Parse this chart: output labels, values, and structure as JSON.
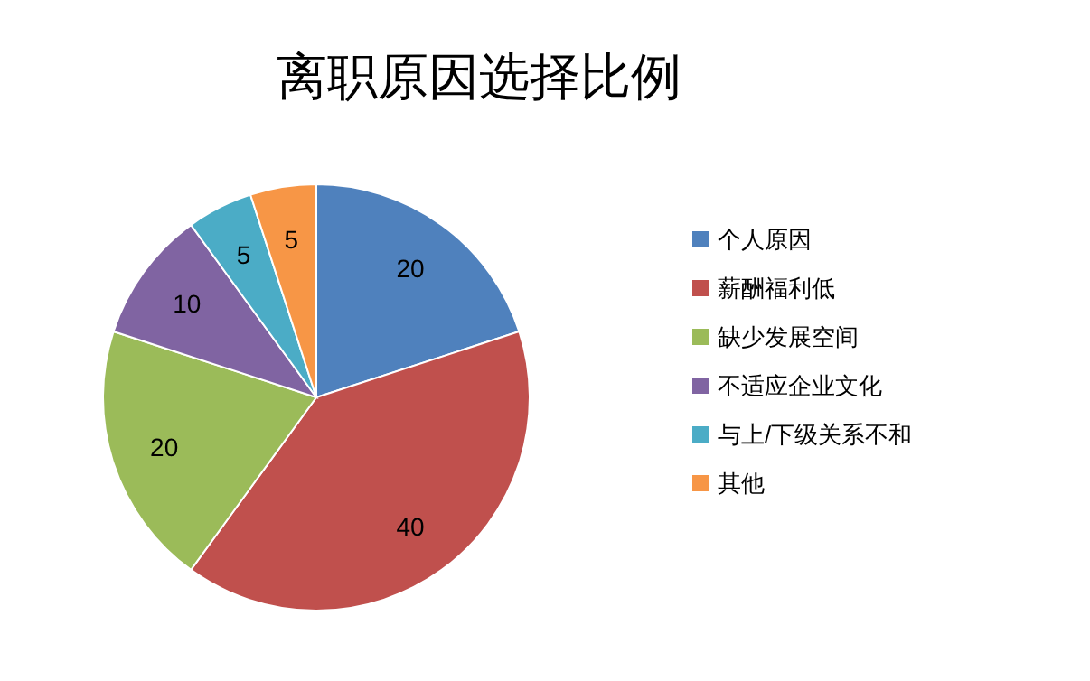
{
  "chart_data": {
    "type": "pie",
    "title": "离职原因选择比例",
    "categories": [
      "个人原因",
      "薪酬福利低",
      "缺少发展空间",
      "不适应企业文化",
      "与上/下级关系不和",
      "其他"
    ],
    "values": [
      20,
      40,
      20,
      10,
      5,
      5
    ],
    "colors": [
      "#4f81bd",
      "#c0504d",
      "#9bbb59",
      "#8064a2",
      "#4bacc6",
      "#f79646"
    ],
    "data_labels": true,
    "legend": "right"
  }
}
